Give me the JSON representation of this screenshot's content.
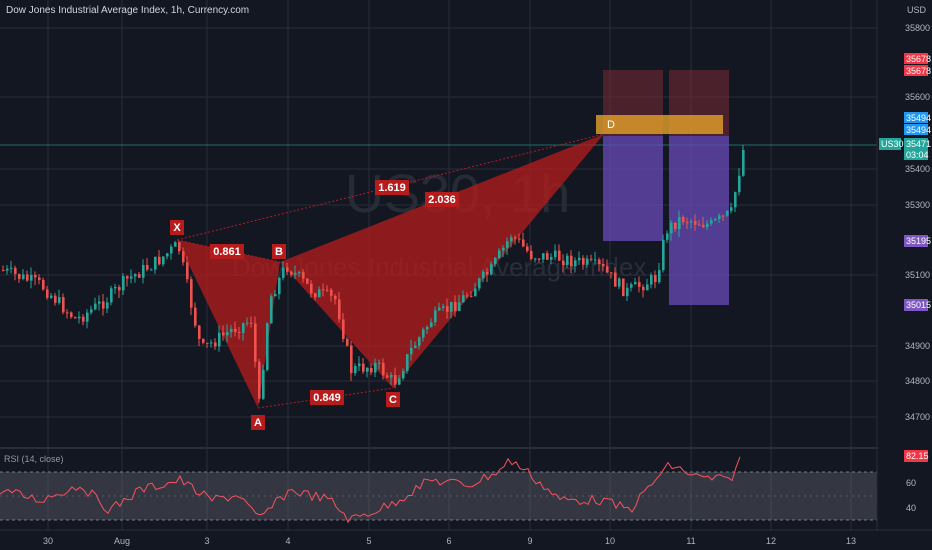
{
  "header": {
    "title": "Dow Jones Industrial Average Index, 1h, Currency.com",
    "currency": "USD"
  },
  "watermark": {
    "symbol": "US30, 1h",
    "name": "Dow Jones Industrial Average Index"
  },
  "rsi": {
    "title": "RSI (14, close)",
    "value_label": "82.15",
    "levels": [
      60.0,
      40.0
    ]
  },
  "price_axis": {
    "ticks": [
      "35800",
      "35600",
      "35400",
      "35300",
      "35100",
      "34900",
      "34800",
      "34700"
    ],
    "badges": [
      {
        "text": "35678",
        "color": "#f23645"
      },
      {
        "text": "35678",
        "color": "#f23645"
      },
      {
        "text": "35494",
        "color": "#2196f3"
      },
      {
        "text": "35494",
        "color": "#2196f3"
      },
      {
        "text": "35471",
        "color": "#26a69a"
      },
      {
        "text": "03:04",
        "color": "#26a69a"
      },
      {
        "text": "35195",
        "color": "#7e57c2"
      },
      {
        "text": "35015",
        "color": "#7e57c2"
      }
    ],
    "symbol_badge": "US30"
  },
  "time_axis": {
    "labels": [
      "30",
      "Aug",
      "3",
      "4",
      "5",
      "6",
      "9",
      "10",
      "11",
      "12",
      "13"
    ]
  },
  "pattern": {
    "points": [
      "X",
      "A",
      "B",
      "C",
      "D"
    ],
    "ratios": [
      "0.861",
      "1.619",
      "2.036",
      "0.849"
    ]
  },
  "colors": {
    "background": "#131722",
    "pattern_fill": "#b71c1c",
    "up": "#26a69a",
    "down": "#ef5350",
    "rsi_line": "#f7525f"
  },
  "chart_data": {
    "type": "candlestick",
    "symbol": "US30",
    "interval": "1h",
    "last_price": 35471,
    "harmonic_pattern": {
      "X": 35195,
      "A": 34728,
      "B": 35130,
      "C": 34790,
      "D": 35494
    },
    "position_targets": [
      35678,
      35494,
      35195,
      35015
    ],
    "rsi_last": 82.15
  }
}
